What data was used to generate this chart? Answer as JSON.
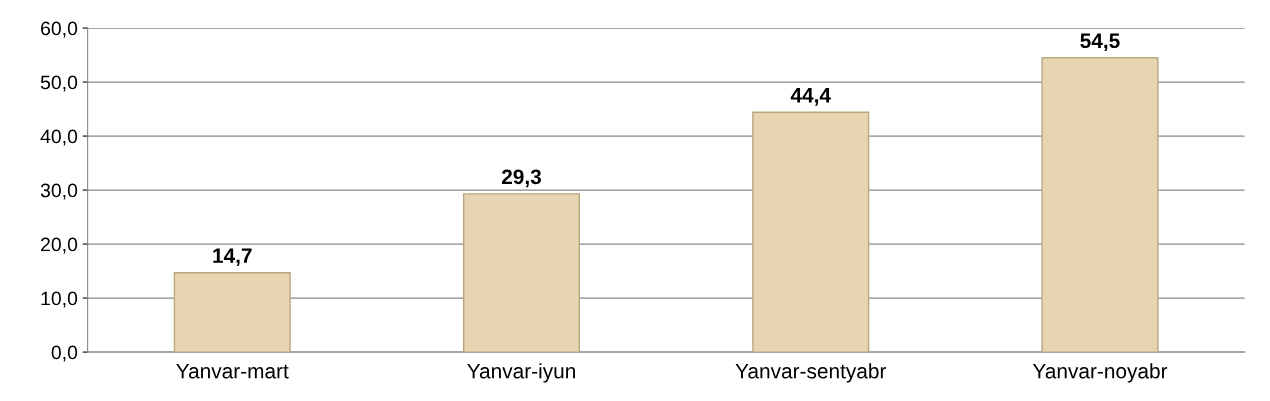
{
  "chart_data": {
    "type": "bar",
    "categories": [
      "Yanvar-mart",
      "Yanvar-iyun",
      "Yanvar-sentyabr",
      "Yanvar-noyabr"
    ],
    "values": [
      14.7,
      29.3,
      44.4,
      54.5
    ],
    "value_labels": [
      "14,7",
      "29,3",
      "44,4",
      "54,5"
    ],
    "color": "#e6d5b0",
    "ylim": [
      0,
      60
    ],
    "yticks": [
      {
        "value": 0,
        "label": "0,0"
      },
      {
        "value": 10,
        "label": "10,0"
      },
      {
        "value": 20,
        "label": "20,0"
      },
      {
        "value": 30,
        "label": "30,0"
      },
      {
        "value": 40,
        "label": "40,0"
      },
      {
        "value": 50,
        "label": "50,0"
      },
      {
        "value": 60,
        "label": "60,0"
      }
    ],
    "grid": "y",
    "legend": false
  }
}
